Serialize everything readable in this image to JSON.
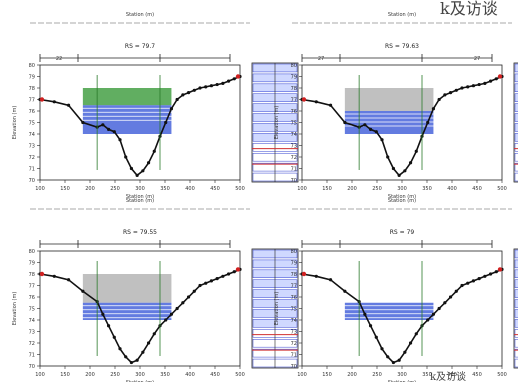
{
  "logo_text": "k及访谈",
  "footer_text": "k及访谈",
  "chart_data": [
    {
      "type": "line",
      "title": "Station (m)",
      "subtitle": "",
      "label": "RS = 79.7",
      "xlabel": "Station (m)",
      "ylabel": "Elevation (m)",
      "xlim": [
        100,
        800
      ],
      "ylim": [
        70,
        80
      ],
      "x_ticks": [
        "100",
        "150",
        "200",
        "250",
        "300",
        "350",
        "400",
        "450",
        "500"
      ],
      "y_ticks": [
        "70",
        "71",
        "72",
        "73",
        "74",
        "75",
        "76",
        "77",
        "78",
        "79",
        "80"
      ],
      "dims": [
        "22",
        ""
      ],
      "water_surface": 76.5,
      "profile": {
        "x": [
          100,
          150,
          200,
          250,
          300,
          320,
          340,
          360,
          380,
          400,
          420,
          440,
          460,
          480,
          500,
          520,
          540,
          560,
          580,
          600,
          620,
          640,
          660,
          680,
          700,
          720,
          740,
          760,
          780,
          800
        ],
        "y": [
          77.0,
          76.8,
          76.5,
          75.0,
          74.6,
          74.8,
          74.4,
          74.2,
          73.5,
          72.0,
          71.0,
          70.4,
          70.8,
          71.5,
          72.5,
          73.8,
          75.0,
          76.2,
          77.0,
          77.4,
          77.6,
          77.8,
          78.0,
          78.1,
          78.2,
          78.3,
          78.4,
          78.6,
          78.8,
          79.0
        ]
      },
      "fill": "green",
      "table_rows": 12
    },
    {
      "type": "line",
      "title": "Station (m)",
      "subtitle": "",
      "label": "RS = 79.63",
      "xlabel": "Station (m)",
      "ylabel": "Elevation (m)",
      "xlim": [
        100,
        800
      ],
      "ylim": [
        70,
        80
      ],
      "x_ticks": [
        "100",
        "150",
        "200",
        "250",
        "300",
        "350",
        "400",
        "450",
        "500"
      ],
      "y_ticks": [
        "70",
        "71",
        "72",
        "73",
        "74",
        "75",
        "76",
        "77",
        "78",
        "79",
        "80"
      ],
      "dims": [
        "27",
        "",
        "27"
      ],
      "water_surface": 76.0,
      "profile": {
        "x": [
          100,
          150,
          200,
          250,
          300,
          320,
          340,
          360,
          380,
          400,
          420,
          440,
          460,
          480,
          500,
          520,
          540,
          560,
          580,
          600,
          620,
          640,
          660,
          680,
          700,
          720,
          740,
          760,
          780,
          800
        ],
        "y": [
          77.0,
          76.8,
          76.5,
          75.0,
          74.6,
          74.8,
          74.4,
          74.2,
          73.5,
          72.0,
          71.0,
          70.4,
          70.8,
          71.5,
          72.5,
          73.8,
          75.0,
          76.2,
          77.0,
          77.4,
          77.6,
          77.8,
          78.0,
          78.1,
          78.2,
          78.3,
          78.4,
          78.6,
          78.8,
          79.0
        ]
      },
      "fill": "gray",
      "table_rows": 12
    },
    {
      "type": "line",
      "title": "Station (m)",
      "subtitle": "",
      "label": "RS = 79.55",
      "xlabel": "Station (m)",
      "ylabel": "Elevation (m)",
      "xlim": [
        100,
        800
      ],
      "ylim": [
        70,
        80
      ],
      "x_ticks": [
        "100",
        "150",
        "200",
        "250",
        "300",
        "350",
        "400",
        "450",
        "500"
      ],
      "y_ticks": [
        "70",
        "71",
        "72",
        "73",
        "74",
        "75",
        "76",
        "77",
        "78",
        "79",
        "80"
      ],
      "dims": [
        "",
        "",
        ""
      ],
      "water_surface": 75.5,
      "profile": {
        "x": [
          100,
          150,
          200,
          250,
          300,
          320,
          340,
          360,
          380,
          400,
          420,
          440,
          460,
          480,
          500,
          520,
          540,
          560,
          580,
          600,
          620,
          640,
          660,
          680,
          700,
          720,
          740,
          760,
          780,
          800
        ],
        "y": [
          78.0,
          77.8,
          77.5,
          76.5,
          75.6,
          74.5,
          73.5,
          72.5,
          71.5,
          70.8,
          70.3,
          70.5,
          71.2,
          72.0,
          72.8,
          73.5,
          74.0,
          74.5,
          75.0,
          75.5,
          76.0,
          76.5,
          77.0,
          77.2,
          77.4,
          77.6,
          77.8,
          78.0,
          78.2,
          78.4
        ]
      },
      "fill": "gray",
      "table_rows": 12
    },
    {
      "type": "line",
      "title": "Station (m)",
      "subtitle": "",
      "label": "RS = 79",
      "xlabel": "Station (m)",
      "ylabel": "Elevation (m)",
      "xlim": [
        100,
        800
      ],
      "ylim": [
        70,
        80
      ],
      "x_ticks": [
        "100",
        "150",
        "200",
        "250",
        "300",
        "350",
        "400",
        "450",
        "500"
      ],
      "y_ticks": [
        "70",
        "71",
        "72",
        "73",
        "74",
        "75",
        "76",
        "77",
        "78",
        "79",
        "80"
      ],
      "dims": [
        "",
        "",
        ""
      ],
      "water_surface": 75.5,
      "profile": {
        "x": [
          100,
          150,
          200,
          250,
          300,
          320,
          340,
          360,
          380,
          400,
          420,
          440,
          460,
          480,
          500,
          520,
          540,
          560,
          580,
          600,
          620,
          640,
          660,
          680,
          700,
          720,
          740,
          760,
          780,
          800
        ],
        "y": [
          78.0,
          77.8,
          77.5,
          76.5,
          75.6,
          74.5,
          73.5,
          72.5,
          71.5,
          70.8,
          70.3,
          70.5,
          71.2,
          72.0,
          72.8,
          73.5,
          74.0,
          74.5,
          75.0,
          75.5,
          76.0,
          76.5,
          77.0,
          77.2,
          77.4,
          77.6,
          77.8,
          78.0,
          78.2,
          78.4
        ]
      },
      "fill": "none",
      "table_rows": 12
    }
  ]
}
